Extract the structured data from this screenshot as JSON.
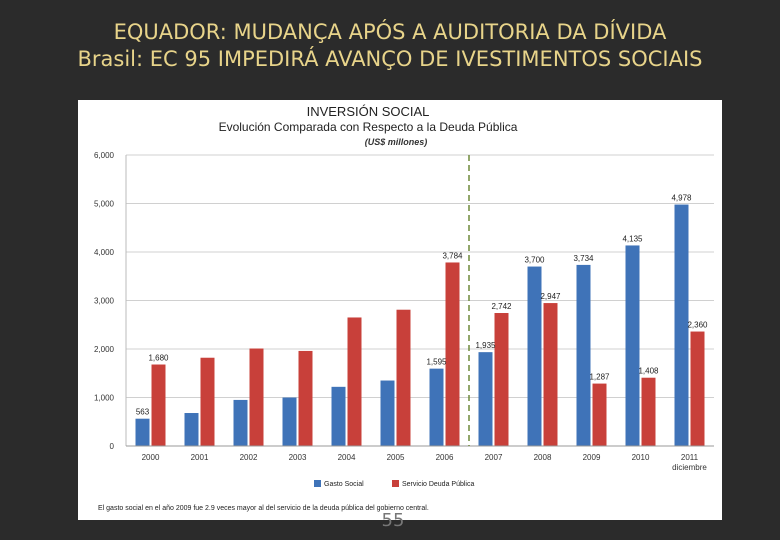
{
  "slide": {
    "title_line1": "EQUADOR: MUDANÇA APÓS A AUDITORIA DA DÍVIDA",
    "title_line2": "Brasil: EC 95 IMPEDIRÁ AVANÇO DE IVESTIMENTOS SOCIAIS",
    "page_number": "55"
  },
  "chart_data": {
    "type": "bar",
    "title": "INVERSIÓN SOCIAL",
    "subtitle": "Evolución Comparada con Respecto a la Deuda Pública",
    "units": "(US$ millones)",
    "categories": [
      "2000",
      "2001",
      "2002",
      "2003",
      "2004",
      "2005",
      "2006",
      "2007",
      "2008",
      "2009",
      "2010",
      "2011"
    ],
    "category_sublabels": {
      "2011": "diciembre"
    },
    "ylim": [
      0,
      6000
    ],
    "yticks": [
      0,
      1000,
      2000,
      3000,
      4000,
      5000,
      6000
    ],
    "ytick_labels": [
      "0",
      "1,000",
      "2,000",
      "3,000",
      "4,000",
      "5,000",
      "6,000"
    ],
    "series": [
      {
        "name": "Gasto Social",
        "color": "#3f73b8",
        "values": [
          563,
          680,
          950,
          1000,
          1220,
          1350,
          1595,
          1935,
          3700,
          3734,
          4135,
          4978
        ],
        "labels": [
          "563",
          "",
          "",
          "",
          "",
          "",
          "1,595",
          "1,935",
          "3,700",
          "3,734",
          "4,135",
          "4,978"
        ]
      },
      {
        "name": "Servicio Deuda Pública",
        "color": "#c8403a",
        "values": [
          1680,
          1820,
          2010,
          1960,
          2650,
          2810,
          3784,
          2742,
          2947,
          1287,
          1408,
          2360
        ],
        "labels": [
          "1,680",
          "",
          "",
          "",
          "",
          "",
          "3,784",
          "2,742",
          "2,947",
          "1,287",
          "1,408",
          "2,360"
        ]
      }
    ],
    "divider_after_category": "2006",
    "footnote": "El gasto social en el año 2009 fue 2.9 veces mayor al del servicio de la deuda pública del gobierno central.",
    "grid": true,
    "legend_position": "bottom-center"
  }
}
